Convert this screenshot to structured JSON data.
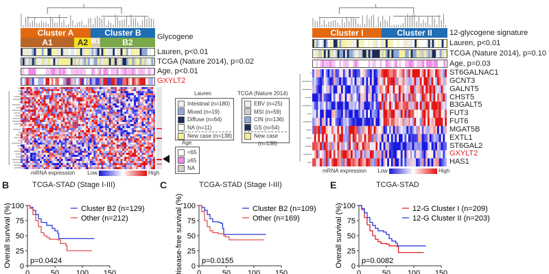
{
  "left": {
    "clusters": [
      {
        "label": "Cluster A",
        "color": "#e2690f"
      },
      {
        "label": "Cluster B",
        "color": "#1f6db3"
      }
    ],
    "subclusters": [
      {
        "label": "A1",
        "color": "#b8652a"
      },
      {
        "label": "A2",
        "color": "#f3e01a"
      },
      {
        "label": "B1",
        "color": "#d9cbb4"
      },
      {
        "label": "B2",
        "color": "#7aa84a"
      }
    ],
    "track_labels": {
      "glycogene": "Glycogene",
      "lauren": "Lauren, p<0.01",
      "tcga": "TCGA (Nature 2014), p=0.02",
      "age": "Age, p<0.01",
      "gxylt2": "GXYLT2"
    },
    "scale": {
      "label": "mRNA expression",
      "low": "Low",
      "high": "High"
    }
  },
  "legends": {
    "lauren": {
      "title": "Lauren",
      "items": [
        {
          "label": "Intestinal (n=180)",
          "color": "#eeeeee"
        },
        {
          "label": "Mixed (n=19)",
          "color": "#8ea9d8"
        },
        {
          "label": "Diffuse (n=64)",
          "color": "#1b2c5c"
        },
        {
          "label": "NA (n=11)",
          "color": "#ffffff"
        },
        {
          "label": "New case (n=138)",
          "color": "#f5f09a"
        }
      ]
    },
    "tcga": {
      "title": "TCGA (Nature 2014)",
      "items": [
        {
          "label": "EBV (n=25)",
          "color": "#eeeeee"
        },
        {
          "label": "MSI (n=59)",
          "color": "#cfcfcf"
        },
        {
          "label": "CIN (n=136)",
          "color": "#8ea9d8"
        },
        {
          "label": "GS (n=54)",
          "color": "#1b2c5c"
        },
        {
          "label": "New case",
          "color": "#f5f09a"
        }
      ],
      "extra": "(n=138)"
    },
    "age": {
      "title": "Age",
      "items": [
        {
          "label": "<65",
          "color": "#ffffff"
        },
        {
          "label": "≥65",
          "color": "#f08ae8"
        },
        {
          "label": "NA",
          "color": "#d8d0c8"
        }
      ]
    }
  },
  "right": {
    "clusters": [
      {
        "label": "Cluster I",
        "color": "#e2690f"
      },
      {
        "label": "Cluster II",
        "color": "#1f6db3"
      }
    ],
    "track_labels": {
      "signature": "12-glycogene signature",
      "lauren": "Lauren, p<0.01",
      "tcga": "TCGA (Nature 2014), p=0.10",
      "age": "Age, p=0.03"
    },
    "genes": [
      "ST6GALNAC1",
      "GCNT3",
      "GALNT5",
      "CHST5",
      "B3GALT5",
      "FUT3",
      "FUT6",
      "MGAT5B",
      "EXTL1",
      "ST6GAL2",
      "GXYLT2",
      "HAS1"
    ],
    "highlight_gene": "GXYLT2",
    "scale": {
      "label": "mRNA expression",
      "low": "Low",
      "high": "High"
    }
  },
  "chart_data": [
    {
      "type": "line",
      "panel": "B",
      "title": "TCGA-STAD (Stage I-III)",
      "xlabel": "",
      "ylabel": "Overall survival (%)",
      "xlim": [
        0,
        150
      ],
      "ylim": [
        0,
        100
      ],
      "xticks": [
        0,
        50,
        100,
        150
      ],
      "yticks": [
        0,
        25,
        50,
        75,
        100
      ],
      "pvalue": "p=0.0424",
      "legend": "top-right",
      "series": [
        {
          "name": "Cluster B2 (n=129)",
          "color": "#2a3bd6",
          "x": [
            0,
            5,
            10,
            15,
            20,
            25,
            35,
            45,
            50,
            55,
            57,
            122
          ],
          "y": [
            100,
            97,
            92,
            85,
            78,
            72,
            67,
            62,
            58,
            54,
            45,
            45
          ]
        },
        {
          "name": "Other (n=212)",
          "color": "#e05050",
          "x": [
            0,
            5,
            10,
            15,
            20,
            25,
            30,
            35,
            40,
            55,
            60,
            70,
            72,
            118
          ],
          "y": [
            100,
            95,
            85,
            75,
            65,
            55,
            50,
            47,
            44,
            43,
            37,
            34,
            25,
            25
          ]
        }
      ]
    },
    {
      "type": "line",
      "panel": "C",
      "title": "TCGA-STAD (Stage I-III)",
      "xlabel": "",
      "ylabel": "Disease-free survival (%)",
      "xlim": [
        0,
        150
      ],
      "ylim": [
        0,
        100
      ],
      "xticks": [
        0,
        50,
        100,
        150
      ],
      "yticks": [
        0,
        25,
        50,
        75,
        100
      ],
      "pvalue": "p=0.0155",
      "legend": "top-right",
      "series": [
        {
          "name": "Cluster B2 (n=109)",
          "color": "#2a3bd6",
          "x": [
            0,
            5,
            10,
            15,
            20,
            25,
            35,
            40,
            43,
            45,
            122
          ],
          "y": [
            100,
            97,
            92,
            85,
            78,
            73,
            72,
            70,
            62,
            52,
            52
          ]
        },
        {
          "name": "Other (n=169)",
          "color": "#e05050",
          "x": [
            0,
            5,
            10,
            15,
            20,
            25,
            35,
            45,
            48,
            55,
            118
          ],
          "y": [
            100,
            90,
            75,
            65,
            58,
            55,
            53,
            50,
            48,
            43,
            43
          ]
        }
      ]
    },
    {
      "type": "line",
      "panel": "E",
      "title": "TCGA-STAD",
      "xlabel": "",
      "ylabel": "Overall survival (%)",
      "xlim": [
        0,
        150
      ],
      "ylim": [
        0,
        100
      ],
      "xticks": [
        0,
        50,
        100,
        150
      ],
      "yticks": [
        0,
        25,
        50,
        75,
        100
      ],
      "pvalue": "p=0.0082",
      "legend": "top-right",
      "series": [
        {
          "name": "12-G Cluster I (n=209)",
          "color": "#e02020",
          "x": [
            0,
            5,
            10,
            15,
            20,
            25,
            30,
            35,
            40,
            50,
            55,
            70,
            72,
            118
          ],
          "y": [
            100,
            93,
            80,
            68,
            58,
            50,
            44,
            40,
            37,
            36,
            33,
            32,
            22,
            22
          ]
        },
        {
          "name": "12-G Cluster II (n=203)",
          "color": "#2a3bd6",
          "x": [
            0,
            5,
            10,
            15,
            20,
            25,
            30,
            35,
            45,
            50,
            55,
            60,
            67,
            70,
            122
          ],
          "y": [
            100,
            95,
            88,
            80,
            72,
            67,
            62,
            58,
            56,
            52,
            45,
            41,
            38,
            33,
            33
          ]
        }
      ]
    }
  ]
}
